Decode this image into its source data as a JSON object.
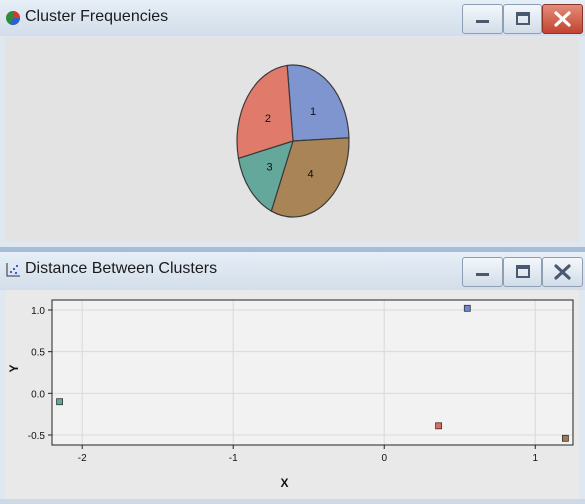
{
  "windows": {
    "cluster_frequencies": {
      "title": "Cluster Frequencies",
      "icon": "pie-chart-icon",
      "controls": [
        "minimize-icon",
        "maximize-icon",
        "close-icon"
      ]
    },
    "distance_between_clusters": {
      "title": "Distance Between Clusters",
      "icon": "scatter-plot-icon",
      "controls": [
        "minimize-icon",
        "maximize-icon",
        "close-icon"
      ]
    }
  },
  "colors": {
    "cluster1": "#7f95cf",
    "cluster2": "#e07a6a",
    "cluster3": "#64a89c",
    "cluster4": "#a98456",
    "close_button": "#c94a35"
  },
  "chart_data": [
    {
      "type": "pie",
      "labels": [
        "1",
        "2",
        "3",
        "4"
      ],
      "values": [
        26,
        27,
        15,
        32
      ],
      "colors": [
        "#7f95cf",
        "#e07a6a",
        "#64a89c",
        "#a98456"
      ]
    },
    {
      "type": "scatter",
      "xlabel": "X",
      "ylabel": "Y",
      "xlim": [
        -2.2,
        1.25
      ],
      "ylim": [
        -0.62,
        1.12
      ],
      "xticks": [
        -2,
        -1,
        0,
        1
      ],
      "yticks": [
        1.0,
        0.5,
        0.0,
        -0.5
      ],
      "xtick_labels": [
        "-2",
        "-1",
        "0",
        "1"
      ],
      "ytick_labels": [
        "1.0",
        "0.5",
        "0.0",
        "-0.5"
      ],
      "grid": true,
      "points": [
        {
          "x": 0.55,
          "y": 1.02,
          "color": "#6f86d6"
        },
        {
          "x": -2.15,
          "y": -0.1,
          "color": "#5fa89c"
        },
        {
          "x": 0.36,
          "y": -0.39,
          "color": "#e06b62"
        },
        {
          "x": 1.2,
          "y": -0.54,
          "color": "#a07a4e"
        }
      ]
    }
  ]
}
